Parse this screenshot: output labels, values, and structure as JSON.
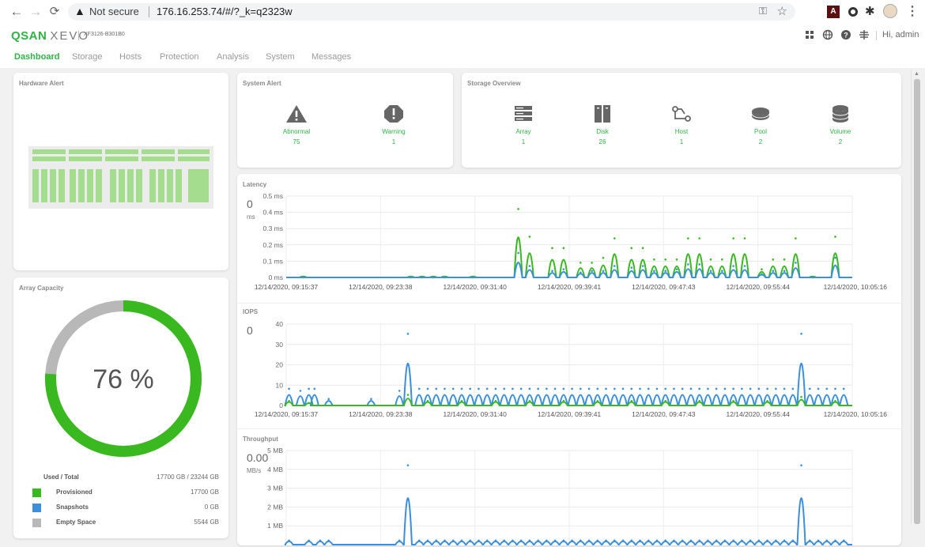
{
  "browser": {
    "back_icon": "back-arrow-icon",
    "not_secure": "Not secure",
    "url": "176.16.253.74/#/?_k=q2323w"
  },
  "app": {
    "logo_main": "QSAN",
    "logo_product": "XEVO",
    "model": "XF3126-B301B0",
    "greeting": "Hi, admin"
  },
  "tabs": [
    {
      "label": "Dashboard"
    },
    {
      "label": "Storage"
    },
    {
      "label": "Hosts"
    },
    {
      "label": "Protection"
    },
    {
      "label": "Analysis"
    },
    {
      "label": "System"
    },
    {
      "label": "Messages"
    }
  ],
  "hardware_alert": {
    "title": "Hardware Alert"
  },
  "system_alert": {
    "title": "System Alert",
    "items": [
      {
        "label": "Abnormal",
        "value": "75",
        "icon": "warning-triangle-icon"
      },
      {
        "label": "Warning",
        "value": "1",
        "icon": "warning-octagon-icon"
      }
    ]
  },
  "storage_overview": {
    "title": "Storage Overview",
    "items": [
      {
        "label": "Array",
        "value": "1",
        "icon": "array-icon"
      },
      {
        "label": "Disk",
        "value": "26",
        "icon": "disk-icon"
      },
      {
        "label": "Host",
        "value": "1",
        "icon": "host-icon"
      },
      {
        "label": "Pool",
        "value": "2",
        "icon": "pool-icon"
      },
      {
        "label": "Volume",
        "value": "2",
        "icon": "volume-icon"
      }
    ]
  },
  "array_capacity": {
    "title": "Array Capacity",
    "percent_label": "76 %",
    "used_fraction": 0.76,
    "used_total_label": "Used / Total",
    "used_total_value": "17700 GB / 23244 GB",
    "legend": [
      {
        "name": "Provisioned",
        "value": "17700 GB",
        "color": "#39b81f"
      },
      {
        "name": "Snapshots",
        "value": "0 GB",
        "color": "#3b8fdc"
      },
      {
        "name": "Empty Space",
        "value": "5544 GB",
        "color": "#b8b8b8"
      }
    ]
  },
  "colors": {
    "green": "#39b81f",
    "blue": "#3b8fdc",
    "gray": "#c4c4c4"
  },
  "chart_data": [
    {
      "type": "line",
      "title": "Latency",
      "current_value": "0",
      "current_unit": "ms",
      "y_ticks": [
        "0 ms",
        "0.1 ms",
        "0.2 ms",
        "0.3 ms",
        "0.4 ms",
        "0.5 ms"
      ],
      "ylim": [
        0,
        0.5
      ],
      "x_tick_labels": [
        "12/14/2020, 09:15:37",
        "12/14/2020, 09:23:38",
        "12/14/2020, 09:31:40",
        "12/14/2020, 09:39:41",
        "12/14/2020, 09:47:43",
        "12/14/2020, 09:55:44",
        "12/14/2020, 10:05:16"
      ],
      "peak_series": [
        {
          "color": "#39b81f",
          "peaks": [
            [
              0.03,
              0.01
            ],
            [
              0.22,
              0.01
            ],
            [
              0.24,
              0.01
            ],
            [
              0.26,
              0.01
            ],
            [
              0.28,
              0.01
            ],
            [
              0.33,
              0.01
            ],
            [
              0.41,
              0.43
            ],
            [
              0.43,
              0.26
            ],
            [
              0.47,
              0.19
            ],
            [
              0.49,
              0.19
            ],
            [
              0.52,
              0.1
            ],
            [
              0.54,
              0.1
            ],
            [
              0.56,
              0.13
            ],
            [
              0.58,
              0.25
            ],
            [
              0.61,
              0.19
            ],
            [
              0.63,
              0.19
            ],
            [
              0.65,
              0.12
            ],
            [
              0.67,
              0.12
            ],
            [
              0.69,
              0.12
            ],
            [
              0.71,
              0.25
            ],
            [
              0.73,
              0.25
            ],
            [
              0.75,
              0.12
            ],
            [
              0.77,
              0.12
            ],
            [
              0.79,
              0.25
            ],
            [
              0.81,
              0.25
            ],
            [
              0.84,
              0.06
            ],
            [
              0.86,
              0.12
            ],
            [
              0.88,
              0.12
            ],
            [
              0.9,
              0.25
            ],
            [
              0.93,
              0.01
            ],
            [
              0.97,
              0.26
            ]
          ]
        },
        {
          "color": "#3b8fdc",
          "peaks": [
            [
              0.41,
              0.16
            ],
            [
              0.43,
              0.08
            ],
            [
              0.47,
              0.05
            ],
            [
              0.49,
              0.06
            ],
            [
              0.52,
              0.04
            ],
            [
              0.54,
              0.05
            ],
            [
              0.56,
              0.05
            ],
            [
              0.58,
              0.08
            ],
            [
              0.61,
              0.07
            ],
            [
              0.63,
              0.08
            ],
            [
              0.65,
              0.05
            ],
            [
              0.67,
              0.05
            ],
            [
              0.69,
              0.06
            ],
            [
              0.71,
              0.09
            ],
            [
              0.73,
              0.09
            ],
            [
              0.75,
              0.05
            ],
            [
              0.77,
              0.05
            ],
            [
              0.79,
              0.08
            ],
            [
              0.81,
              0.08
            ],
            [
              0.84,
              0.03
            ],
            [
              0.86,
              0.05
            ],
            [
              0.88,
              0.05
            ],
            [
              0.9,
              0.1
            ],
            [
              0.97,
              0.13
            ]
          ]
        }
      ]
    },
    {
      "type": "line",
      "title": "IOPS",
      "current_value": "0",
      "current_unit": "",
      "y_ticks": [
        "0",
        "10",
        "20",
        "30",
        "40"
      ],
      "ylim": [
        0,
        40
      ],
      "x_tick_labels": [
        "12/14/2020, 09:15:37",
        "12/14/2020, 09:23:38",
        "12/14/2020, 09:31:40",
        "12/14/2020, 09:39:41",
        "12/14/2020, 09:47:43",
        "12/14/2020, 09:55:44",
        "12/14/2020, 10:05:16"
      ],
      "peak_series": [
        {
          "color": "#3b8fdc",
          "peaks": [
            [
              0.005,
              9
            ],
            [
              0.025,
              8
            ],
            [
              0.04,
              9
            ],
            [
              0.05,
              9
            ],
            [
              0.075,
              4
            ],
            [
              0.15,
              4
            ],
            [
              0.2,
              8
            ],
            [
              0.215,
              36
            ],
            [
              0.235,
              9
            ],
            [
              0.25,
              9
            ],
            [
              0.265,
              9
            ],
            [
              0.28,
              9
            ],
            [
              0.295,
              9
            ],
            [
              0.31,
              9
            ],
            [
              0.325,
              9
            ],
            [
              0.34,
              9
            ],
            [
              0.355,
              9
            ],
            [
              0.37,
              9
            ],
            [
              0.385,
              9
            ],
            [
              0.4,
              9
            ],
            [
              0.415,
              9
            ],
            [
              0.43,
              9
            ],
            [
              0.445,
              9
            ],
            [
              0.46,
              9
            ],
            [
              0.475,
              9
            ],
            [
              0.49,
              9
            ],
            [
              0.505,
              9
            ],
            [
              0.52,
              9
            ],
            [
              0.535,
              9
            ],
            [
              0.55,
              9
            ],
            [
              0.565,
              9
            ],
            [
              0.58,
              9
            ],
            [
              0.595,
              9
            ],
            [
              0.61,
              9
            ],
            [
              0.625,
              9
            ],
            [
              0.64,
              9
            ],
            [
              0.655,
              9
            ],
            [
              0.67,
              9
            ],
            [
              0.685,
              9
            ],
            [
              0.7,
              9
            ],
            [
              0.715,
              9
            ],
            [
              0.73,
              9
            ],
            [
              0.745,
              9
            ],
            [
              0.76,
              9
            ],
            [
              0.775,
              9
            ],
            [
              0.79,
              9
            ],
            [
              0.805,
              9
            ],
            [
              0.82,
              9
            ],
            [
              0.835,
              9
            ],
            [
              0.85,
              9
            ],
            [
              0.865,
              9
            ],
            [
              0.88,
              9
            ],
            [
              0.895,
              9
            ],
            [
              0.91,
              36
            ],
            [
              0.925,
              9
            ],
            [
              0.94,
              9
            ],
            [
              0.955,
              9
            ],
            [
              0.97,
              9
            ],
            [
              0.985,
              9
            ]
          ]
        },
        {
          "color": "#39b81f",
          "peaks": [
            [
              0.005,
              3
            ],
            [
              0.04,
              2
            ],
            [
              0.215,
              6
            ],
            [
              0.25,
              3
            ],
            [
              0.31,
              3
            ],
            [
              0.37,
              3
            ],
            [
              0.43,
              3
            ],
            [
              0.49,
              3
            ],
            [
              0.55,
              3
            ],
            [
              0.61,
              3
            ],
            [
              0.67,
              3
            ],
            [
              0.73,
              3
            ],
            [
              0.79,
              3
            ],
            [
              0.85,
              3
            ],
            [
              0.91,
              5
            ],
            [
              0.97,
              3
            ]
          ]
        }
      ]
    },
    {
      "type": "line",
      "title": "Throughput",
      "current_value": "0.00",
      "current_unit": "MB/s",
      "y_ticks": [
        "1 MB",
        "2 MB",
        "3 MB",
        "4 MB",
        "5 MB"
      ],
      "ylim": [
        0,
        5
      ],
      "x_tick_labels": [],
      "peak_series": [
        {
          "color": "#3b8fdc",
          "peaks": [
            [
              0.005,
              0.3
            ],
            [
              0.04,
              0.3
            ],
            [
              0.06,
              0.3
            ],
            [
              0.075,
              0.3
            ],
            [
              0.2,
              0.3
            ],
            [
              0.215,
              4.3
            ],
            [
              0.235,
              0.3
            ],
            [
              0.25,
              0.3
            ],
            [
              0.265,
              0.3
            ],
            [
              0.28,
              0.3
            ],
            [
              0.295,
              0.3
            ],
            [
              0.31,
              0.3
            ],
            [
              0.325,
              0.3
            ],
            [
              0.34,
              0.3
            ],
            [
              0.355,
              0.3
            ],
            [
              0.37,
              0.3
            ],
            [
              0.385,
              0.3
            ],
            [
              0.4,
              0.3
            ],
            [
              0.415,
              0.3
            ],
            [
              0.43,
              0.3
            ],
            [
              0.445,
              0.3
            ],
            [
              0.46,
              0.3
            ],
            [
              0.475,
              0.3
            ],
            [
              0.49,
              0.3
            ],
            [
              0.505,
              0.3
            ],
            [
              0.52,
              0.3
            ],
            [
              0.535,
              0.3
            ],
            [
              0.55,
              0.3
            ],
            [
              0.565,
              0.3
            ],
            [
              0.58,
              0.3
            ],
            [
              0.595,
              0.3
            ],
            [
              0.61,
              0.3
            ],
            [
              0.625,
              0.3
            ],
            [
              0.64,
              0.3
            ],
            [
              0.655,
              0.3
            ],
            [
              0.67,
              0.3
            ],
            [
              0.685,
              0.3
            ],
            [
              0.7,
              0.3
            ],
            [
              0.715,
              0.3
            ],
            [
              0.73,
              0.3
            ],
            [
              0.745,
              0.3
            ],
            [
              0.76,
              0.3
            ],
            [
              0.775,
              0.3
            ],
            [
              0.79,
              0.3
            ],
            [
              0.805,
              0.3
            ],
            [
              0.82,
              0.3
            ],
            [
              0.835,
              0.3
            ],
            [
              0.85,
              0.3
            ],
            [
              0.865,
              0.3
            ],
            [
              0.88,
              0.3
            ],
            [
              0.895,
              0.3
            ],
            [
              0.91,
              4.3
            ],
            [
              0.925,
              0.3
            ],
            [
              0.94,
              0.3
            ],
            [
              0.955,
              0.3
            ],
            [
              0.97,
              0.3
            ],
            [
              0.985,
              0.3
            ]
          ]
        }
      ]
    }
  ]
}
